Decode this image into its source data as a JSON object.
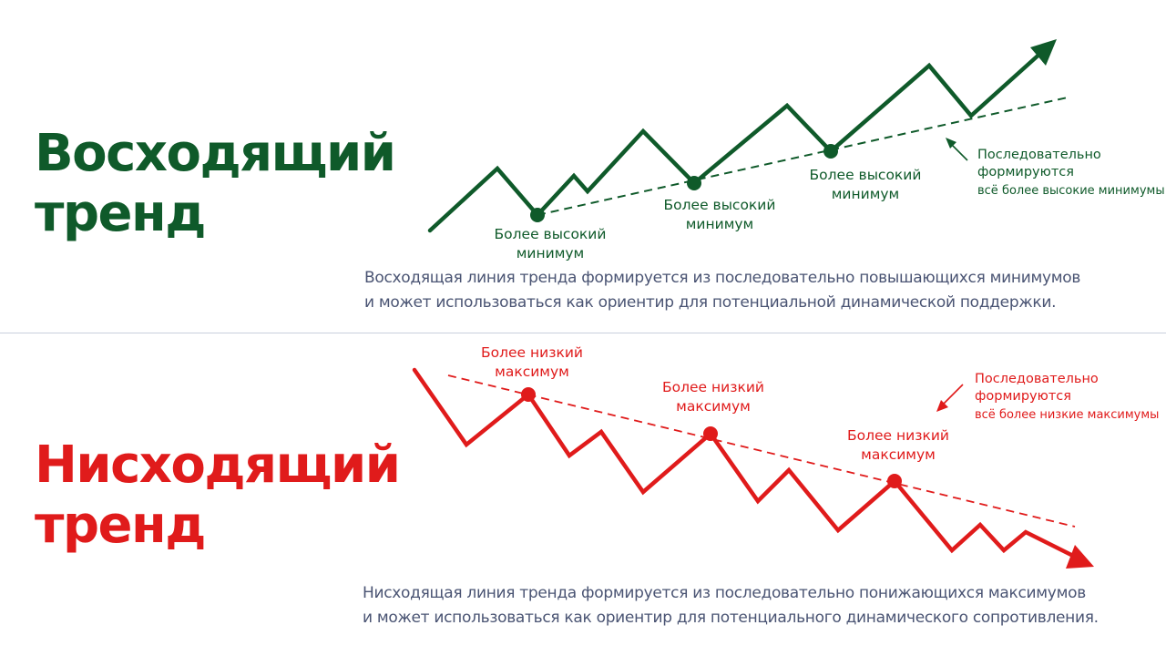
{
  "uptrend": {
    "title_line1": "Восходящий",
    "title_line2": "тренд",
    "color": "#0f5a2a",
    "point_labels": [
      {
        "line1": "Более высокий",
        "line2": "минимум"
      },
      {
        "line1": "Более высокий",
        "line2": "минимум"
      },
      {
        "line1": "Более высокий",
        "line2": "минимум"
      }
    ],
    "note": {
      "line1": "Последовательно",
      "line2": "формируются",
      "line3": "всё более высокие минимумы"
    },
    "description_line1": "Восходящая линия тренда формируется из последовательно повышающихся минимумов",
    "description_line2": "и может использоваться как ориентир для потенциальной динамической поддержки."
  },
  "downtrend": {
    "title_line1": "Нисходящий",
    "title_line2": "тренд",
    "color": "#e01b1b",
    "point_labels": [
      {
        "line1": "Более низкий",
        "line2": "максимум"
      },
      {
        "line1": "Более низкий",
        "line2": "максимум"
      },
      {
        "line1": "Более низкий",
        "line2": "максимум"
      }
    ],
    "note": {
      "line1": "Последовательно",
      "line2": "формируются",
      "line3": "всё более низкие максимумы"
    },
    "description_line1": "Нисходящая линия тренда формируется из последовательно понижающихся максимумов",
    "description_line2": "и может использоваться как ориентир для потенциального динамического сопротивления."
  }
}
